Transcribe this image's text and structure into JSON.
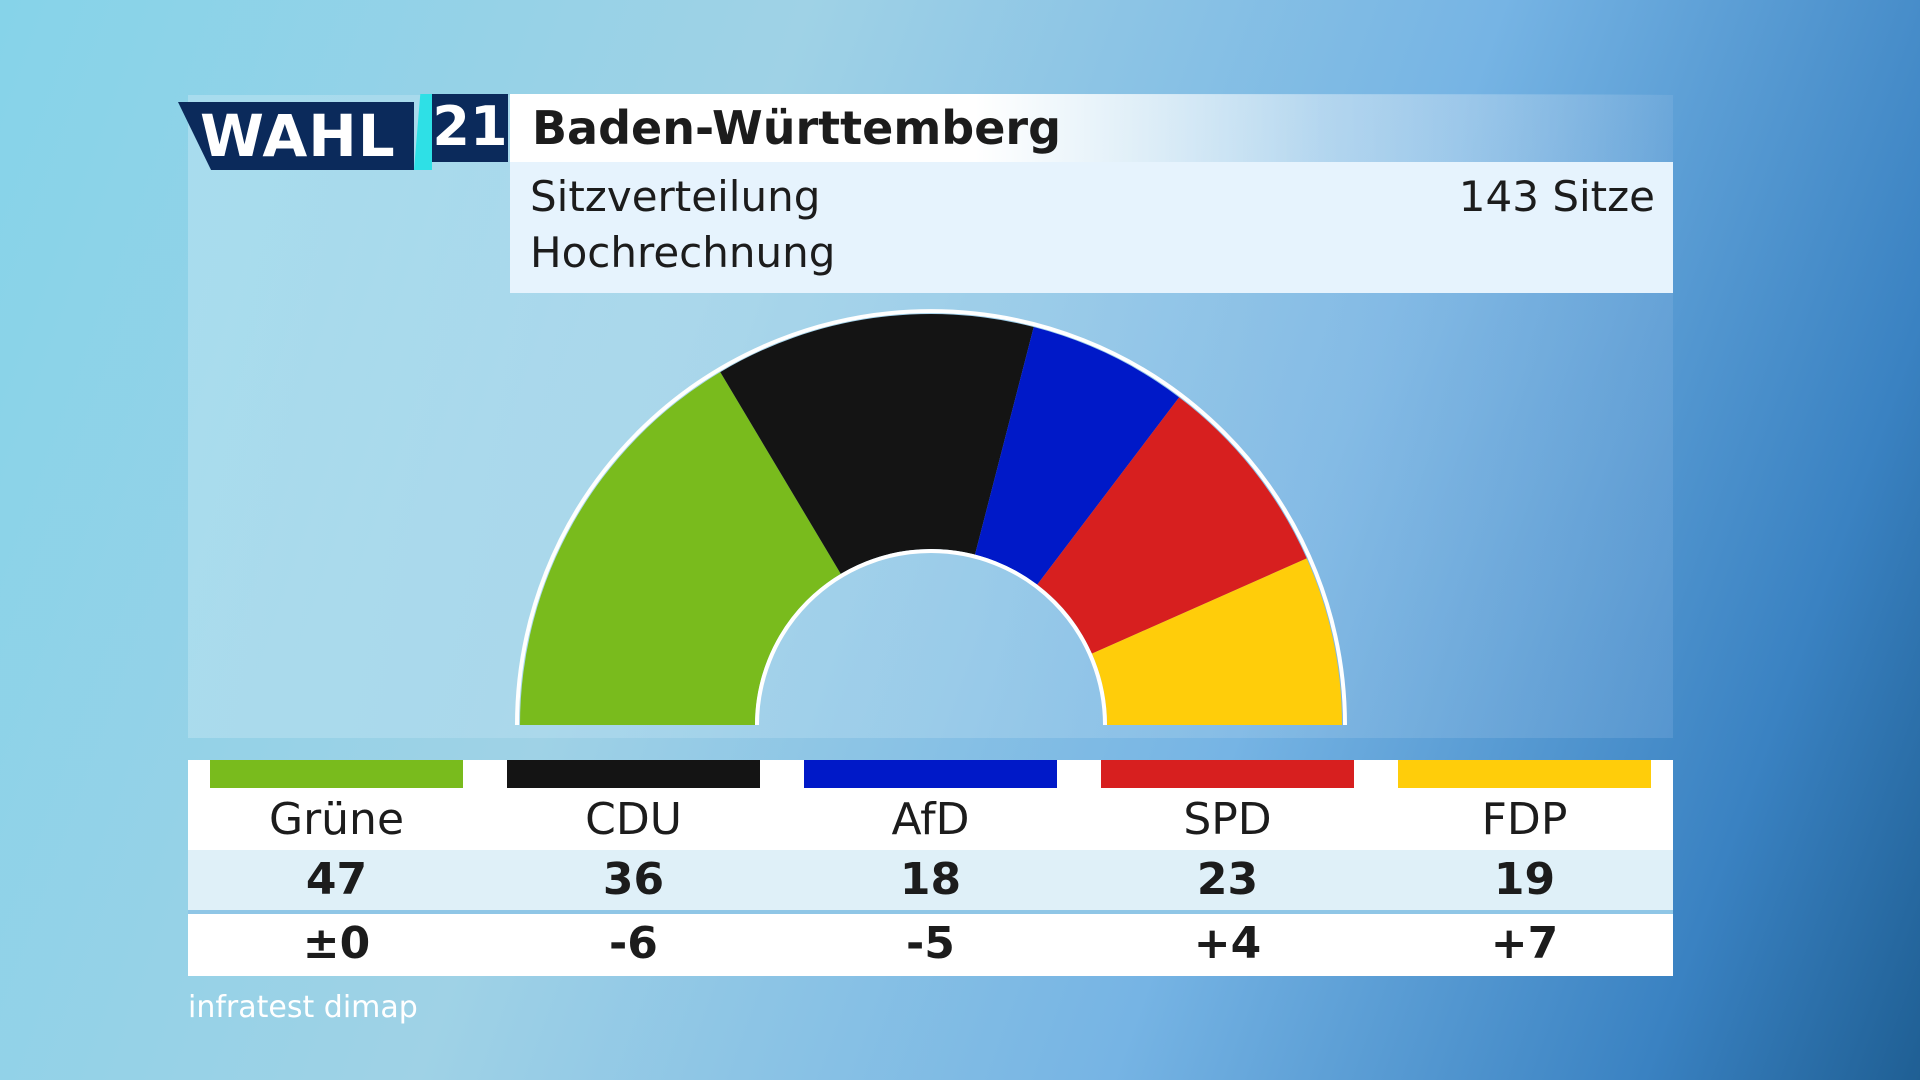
{
  "logo": {
    "wahl": "WAHL",
    "year": "21"
  },
  "header": {
    "title": "Baden-Württemberg",
    "subtitle_line1": "Sitzverteilung",
    "subtitle_line2": "Hochrechnung",
    "total_label": "143 Sitze"
  },
  "chart_data": {
    "type": "pie",
    "variant": "semicircle-parliament",
    "total_seats": 143,
    "categories": [
      "Grüne",
      "CDU",
      "AfD",
      "SPD",
      "FDP"
    ],
    "values": [
      47,
      36,
      18,
      23,
      19
    ],
    "changes": [
      "±0",
      "-6",
      "-5",
      "+4",
      "+7"
    ],
    "colors": [
      "#79bb1d",
      "#141414",
      "#0019c8",
      "#d71f1f",
      "#ffcd0a"
    ]
  },
  "source": "infratest dimap"
}
